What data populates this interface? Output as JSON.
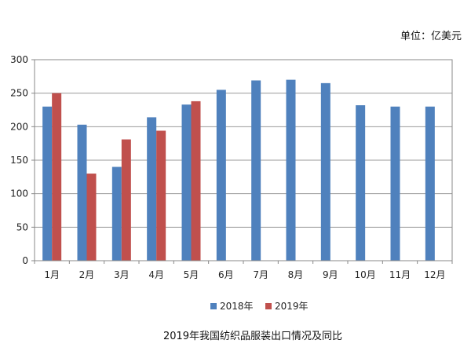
{
  "chart_data": {
    "type": "bar",
    "title": "2019年我国纺织品服装出口情况及同比",
    "unit_label": "单位：亿美元",
    "ylim": [
      0,
      300
    ],
    "yticks": [
      0,
      50,
      100,
      150,
      200,
      250,
      300
    ],
    "categories": [
      "1月",
      "2月",
      "3月",
      "4月",
      "5月",
      "6月",
      "7月",
      "8月",
      "9月",
      "10月",
      "11月",
      "12月"
    ],
    "series": [
      {
        "name": "2018年",
        "color": "#4f81bd",
        "values": [
          230,
          203,
          140,
          214,
          233,
          255,
          269,
          270,
          265,
          232,
          230,
          230
        ]
      },
      {
        "name": "2019年",
        "color": "#c0504d",
        "values": [
          250,
          130,
          181,
          194,
          238,
          null,
          null,
          null,
          null,
          null,
          null,
          null
        ]
      }
    ],
    "grid": true,
    "legend_position": "bottom"
  }
}
